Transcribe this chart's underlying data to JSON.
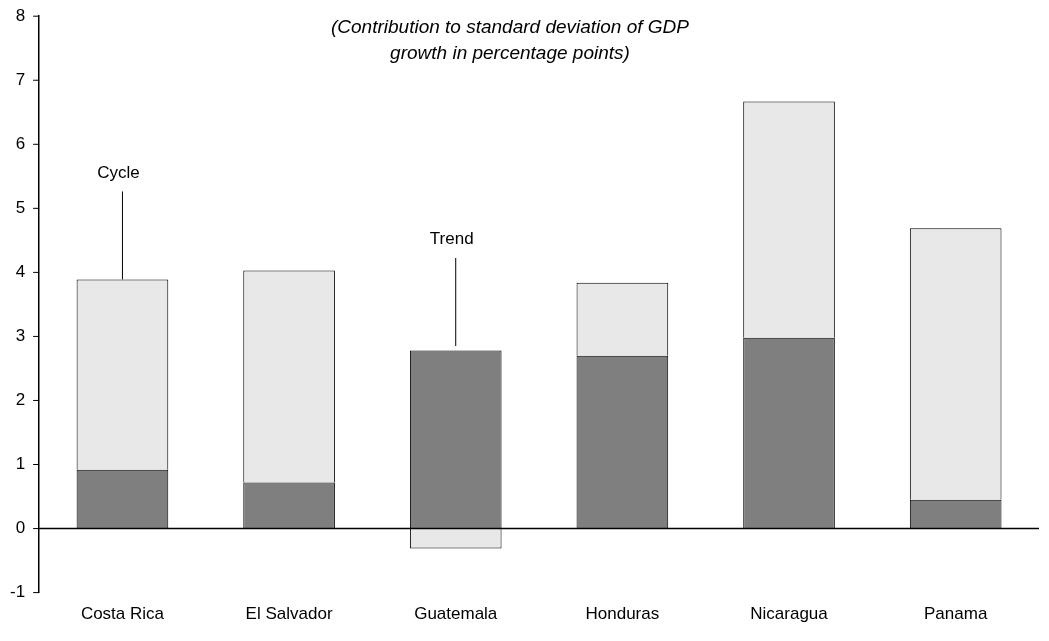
{
  "chart_data": {
    "type": "bar",
    "stacked": true,
    "title": "(Contribution to standard deviation of GDP growth in percentage points)",
    "categories": [
      "Costa Rica",
      "El Salvador",
      "Guatemala",
      "Honduras",
      "Nicaragua",
      "Panama"
    ],
    "series": [
      {
        "color": "#7f7f7f",
        "values": [
          0.92,
          0.72,
          2.78,
          2.7,
          2.98,
          0.45
        ]
      },
      {
        "color": "#e8e8e8",
        "values": [
          2.97,
          3.31,
          -0.31,
          1.14,
          3.69,
          4.24
        ]
      }
    ],
    "ylim": [
      -1,
      8
    ],
    "yticks": [
      -1,
      0,
      1,
      2,
      3,
      4,
      5,
      6,
      7,
      8
    ],
    "grid": false,
    "legend": false,
    "ref_lines": [
      {
        "axis": "y",
        "value": 0,
        "color": "#000000"
      }
    ],
    "annotations": [
      {
        "text": "Cycle",
        "x": "Costa Rica",
        "y": 3.89
      },
      {
        "text": "Trend",
        "x": "Guatemala",
        "y": 2.85
      }
    ]
  }
}
